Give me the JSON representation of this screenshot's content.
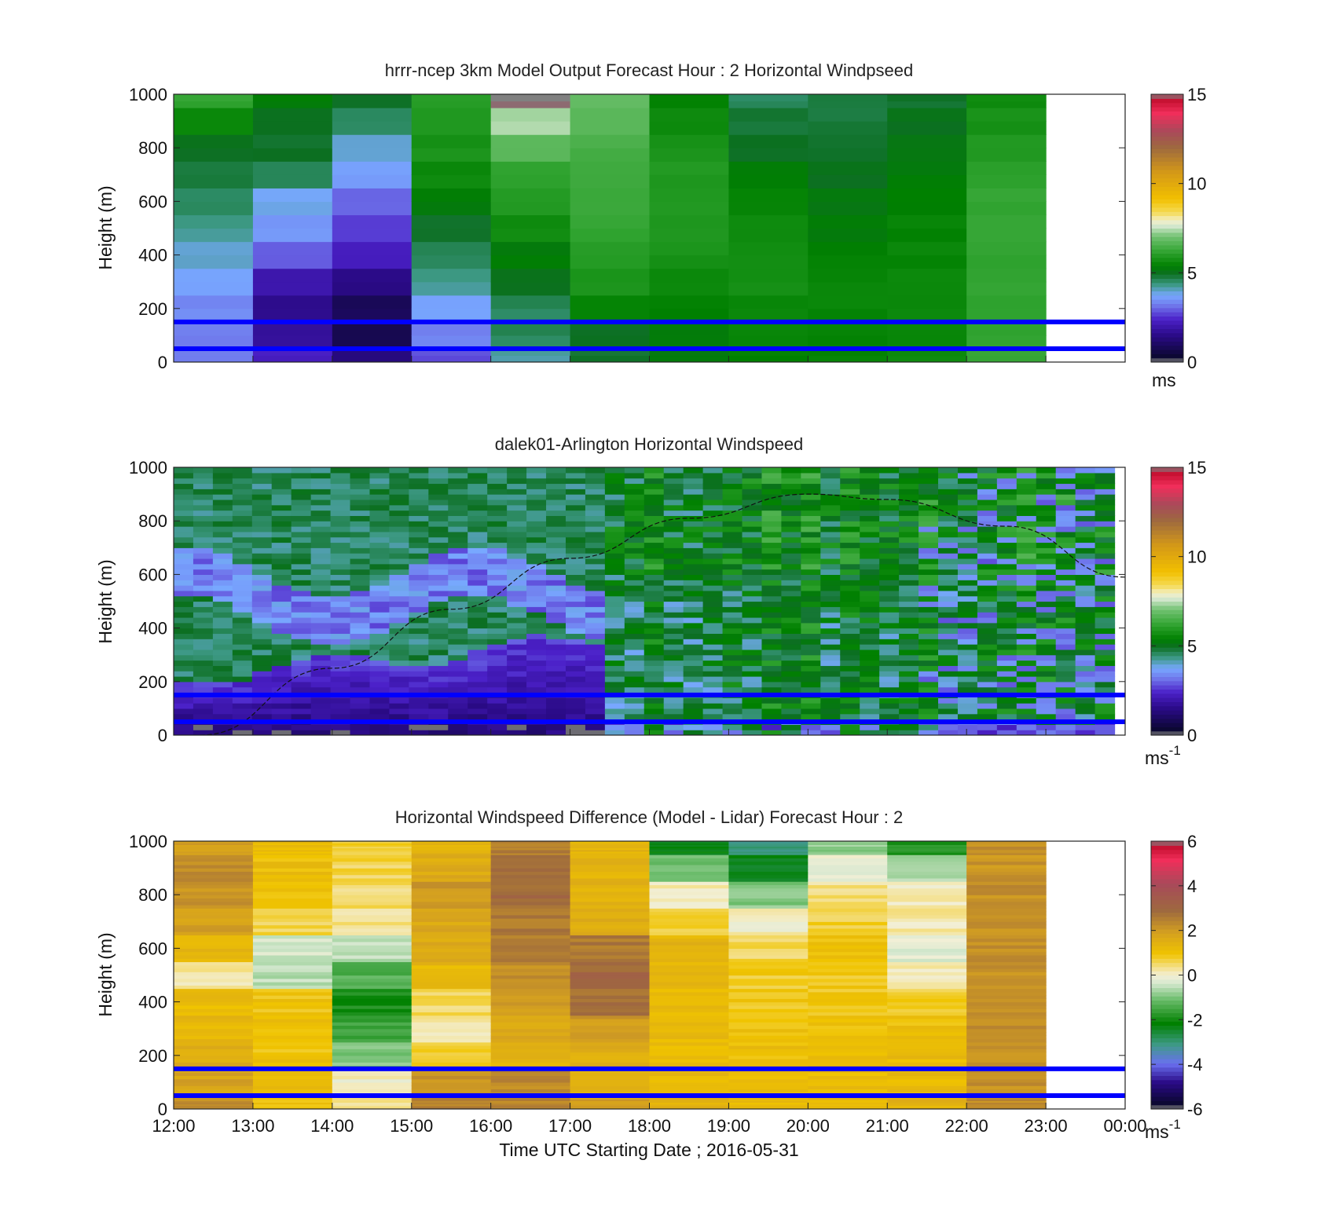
{
  "chart_data": [
    {
      "type": "heatmap",
      "title": "hrrr-ncep 3km Model Output   Forecast Hour : 2 Horizontal Windpseed",
      "ylabel": "Height (m)",
      "xlabel": "",
      "ylim": [
        0,
        1000
      ],
      "yticks": [
        "0",
        "200",
        "400",
        "600",
        "800",
        "1000"
      ],
      "xlim": [
        "12:00",
        "00:00"
      ],
      "colorbar": {
        "scale": "speed",
        "min": 0,
        "max": 15,
        "ticks": [
          "0",
          "5",
          "10",
          "15"
        ],
        "unit": "ms",
        "unit_sup": ""
      },
      "reference_heights": [
        50,
        150
      ],
      "rows_bottom_to_top": [
        "0-50",
        "50-150",
        "150-250",
        "250-350",
        "350-450",
        "450-550",
        "550-650",
        "650-750",
        "750-850",
        "850-950",
        "950-1000"
      ],
      "columns": [
        {
          "start": "12:00",
          "values": [
            3.2,
            3.3,
            3.4,
            3.7,
            4.0,
            4.3,
            4.6,
            4.8,
            5.0,
            5.6,
            6.2
          ]
        },
        {
          "start": "13:00",
          "values": [
            2.3,
            1.8,
            1.6,
            2.0,
            3.0,
            3.6,
            3.8,
            4.6,
            4.9,
            5.0,
            5.3
          ]
        },
        {
          "start": "14:00",
          "values": [
            1.4,
            0.8,
            0.9,
            1.5,
            2.2,
            2.6,
            3.0,
            3.6,
            4.0,
            4.6,
            4.9
          ]
        },
        {
          "start": "15:00",
          "values": [
            2.8,
            3.3,
            3.7,
            4.3,
            4.6,
            4.9,
            5.3,
            5.6,
            5.8,
            5.9,
            6.0
          ]
        },
        {
          "start": "16:00",
          "values": [
            4.2,
            4.6,
            4.6,
            5.0,
            5.3,
            5.7,
            6.0,
            6.2,
            6.8,
            7.4,
            15.0
          ]
        },
        {
          "start": "17:00",
          "values": [
            4.9,
            5.0,
            5.5,
            5.8,
            6.0,
            6.2,
            6.3,
            6.4,
            6.5,
            6.8,
            6.9
          ]
        },
        {
          "start": "18:00",
          "values": [
            5.2,
            5.3,
            5.4,
            5.6,
            5.8,
            5.9,
            5.9,
            5.9,
            5.8,
            5.6,
            5.4
          ]
        },
        {
          "start": "19:00",
          "values": [
            5.4,
            5.5,
            5.6,
            5.7,
            5.7,
            5.6,
            5.5,
            5.3,
            5.0,
            4.8,
            4.6
          ]
        },
        {
          "start": "20:00",
          "values": [
            5.5,
            5.5,
            5.5,
            5.5,
            5.4,
            5.3,
            5.2,
            5.0,
            4.9,
            4.8,
            4.8
          ]
        },
        {
          "start": "21:00",
          "values": [
            5.6,
            5.6,
            5.6,
            5.6,
            5.5,
            5.5,
            5.4,
            5.3,
            5.2,
            5.0,
            4.9
          ]
        },
        {
          "start": "22:00",
          "values": [
            6.2,
            6.2,
            6.2,
            6.2,
            6.2,
            6.2,
            6.2,
            6.1,
            6.0,
            5.8,
            5.6
          ]
        }
      ]
    },
    {
      "type": "heatmap",
      "title": "dalek01-Arlington  Horizontal Windspeed",
      "ylabel": "Height (m)",
      "xlabel": "",
      "ylim": [
        0,
        1000
      ],
      "yticks": [
        "0",
        "200",
        "400",
        "600",
        "800",
        "1000"
      ],
      "xlim": [
        "12:00",
        "00:00"
      ],
      "colorbar": {
        "scale": "speed",
        "min": 0,
        "max": 15,
        "ticks": [
          "0",
          "5",
          "10",
          "15"
        ],
        "unit": "ms",
        "unit_sup": "-1"
      },
      "reference_heights": [
        50,
        150
      ],
      "boundary_layer_curve": [
        {
          "time": "12:20",
          "height": 0
        },
        {
          "time": "14:00",
          "height": 250
        },
        {
          "time": "15:30",
          "height": 470
        },
        {
          "time": "17:00",
          "height": 660
        },
        {
          "time": "18:30",
          "height": 810
        },
        {
          "time": "20:00",
          "height": 900
        },
        {
          "time": "21:00",
          "height": 880
        },
        {
          "time": "22:30",
          "height": 780
        },
        {
          "time": "24:00",
          "height": 590
        }
      ],
      "description_series": [
        {
          "time_range": [
            "12:00",
            "17:00"
          ],
          "low_layer_speed": "1-3",
          "upper_layer_speed": "4-5"
        },
        {
          "time_range": [
            "17:00",
            "24:00"
          ],
          "low_layer_speed": "4-6",
          "upper_layer_speed": "5-8"
        }
      ]
    },
    {
      "type": "heatmap",
      "title": "Horizontal Windspeed Difference (Model - Lidar) Forecast Hour : 2",
      "ylabel": "Height (m)",
      "xlabel": "Time UTC  Starting Date ; 2016-05-31",
      "ylim": [
        0,
        1000
      ],
      "yticks": [
        "0",
        "200",
        "400",
        "600",
        "800",
        "1000"
      ],
      "xlim": [
        "12:00",
        "00:00"
      ],
      "xticks": [
        "12:00",
        "13:00",
        "14:00",
        "15:00",
        "16:00",
        "17:00",
        "18:00",
        "19:00",
        "20:00",
        "21:00",
        "22:00",
        "23:00",
        "00:00"
      ],
      "colorbar": {
        "scale": "diff",
        "min": -6,
        "max": 6,
        "ticks": [
          "-6",
          "-4",
          "-2",
          "0",
          "2",
          "4",
          "6"
        ],
        "unit": "ms",
        "unit_sup": "-1"
      },
      "reference_heights": [
        50,
        150
      ],
      "rows_bottom_to_top": [
        "0-50",
        "50-150",
        "150-250",
        "250-350",
        "350-450",
        "450-550",
        "550-650",
        "650-750",
        "750-850",
        "850-950",
        "950-1000"
      ],
      "columns": [
        {
          "start": "12:00",
          "values": [
            2.3,
            1.8,
            1.6,
            1.3,
            1.2,
            0.2,
            1.3,
            1.9,
            2.1,
            2.3,
            2.0
          ]
        },
        {
          "start": "13:00",
          "values": [
            1.0,
            1.2,
            1.0,
            1.1,
            1.0,
            -0.6,
            -0.4,
            0.6,
            1.1,
            1.1,
            1.2
          ]
        },
        {
          "start": "14:00",
          "values": [
            0.2,
            0.1,
            -1.0,
            -1.6,
            -1.9,
            -1.3,
            -0.6,
            0.3,
            0.5,
            0.6,
            0.7
          ]
        },
        {
          "start": "15:00",
          "values": [
            2.5,
            2.2,
            0.8,
            0.3,
            0.5,
            1.3,
            1.6,
            1.7,
            2.0,
            1.6,
            1.4
          ]
        },
        {
          "start": "16:00",
          "values": [
            2.4,
            2.3,
            1.4,
            1.7,
            1.9,
            2.2,
            2.5,
            2.6,
            2.9,
            2.7,
            2.5
          ]
        },
        {
          "start": "17:00",
          "values": [
            1.9,
            1.4,
            1.5,
            2.0,
            2.8,
            3.0,
            2.6,
            1.6,
            1.4,
            1.4,
            1.4
          ]
        },
        {
          "start": "18:00",
          "values": [
            1.4,
            1.2,
            1.2,
            1.2,
            1.2,
            1.4,
            1.4,
            0.8,
            0.1,
            -1.1,
            -2.2
          ]
        },
        {
          "start": "19:00",
          "values": [
            1.2,
            1.1,
            1.1,
            1.0,
            0.9,
            0.8,
            0.6,
            0.1,
            -0.9,
            -2.3,
            -3.0
          ]
        },
        {
          "start": "20:00",
          "values": [
            1.3,
            1.2,
            1.2,
            1.0,
            0.9,
            0.9,
            1.0,
            0.7,
            0.4,
            -0.2,
            -0.8
          ]
        },
        {
          "start": "21:00",
          "values": [
            1.4,
            1.2,
            1.2,
            1.1,
            0.7,
            0.1,
            -0.2,
            0.2,
            0.1,
            -0.6,
            -1.8
          ]
        },
        {
          "start": "22:00",
          "values": [
            2.3,
            2.2,
            2.2,
            2.2,
            2.1,
            2.2,
            2.2,
            2.2,
            2.2,
            2.1,
            2.2
          ]
        }
      ]
    }
  ]
}
